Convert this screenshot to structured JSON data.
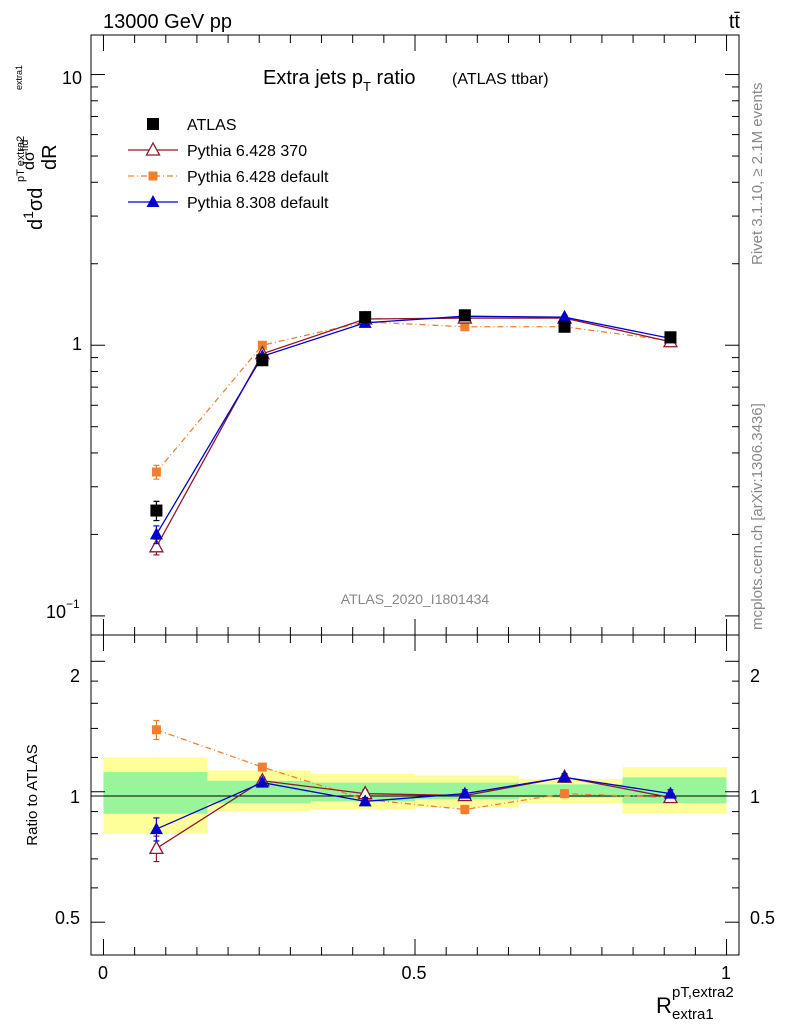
{
  "header": {
    "left": "13000 GeV pp",
    "right": "tt̄"
  },
  "side_texts": {
    "rivet": "Rivet 3.1.10, ≥ 2.1M events",
    "mcplots": "mcplots.cern.ch [arXiv:1306.3436]"
  },
  "watermark": "ATLAS_2020_I1801434",
  "main_title": {
    "text": "Extra jets p",
    "sub": "T",
    "text2": " ratio",
    "small": "(ATLAS ttbar)"
  },
  "ylabel_main": "d¹⁄σ d dσfid / dR pT extra2 extra1",
  "ylabel_ratio": "Ratio to ATLAS",
  "xlabel": {
    "main": "R",
    "sup": "pT,extra2",
    "sub": "extra1"
  },
  "main_ticks": {
    "labels": [
      "10",
      "1",
      "10"
    ],
    "exp": "−1"
  },
  "ratio_ticks": [
    "2",
    "1",
    "0.5"
  ],
  "x_ticks": [
    "0",
    "0.5",
    "1"
  ],
  "legend": [
    {
      "label": "ATLAS",
      "color": "#000000"
    },
    {
      "label": "Pythia 6.428 370",
      "color": "#8b1a2b"
    },
    {
      "label": "Pythia 6.428 default",
      "color": "#f08030"
    },
    {
      "label": "Pythia 8.308 default",
      "color": "#0000cc"
    }
  ],
  "chart_data": {
    "type": "line",
    "x_edges": [
      0,
      0.167,
      0.333,
      0.5,
      0.667,
      0.833,
      1.0
    ],
    "x": [
      0.085,
      0.255,
      0.42,
      0.58,
      0.74,
      0.91
    ],
    "xlim": [
      -0.02,
      1.02
    ],
    "main_ylim": [
      0.085,
      14
    ],
    "main_log": true,
    "ratio_ylim": [
      0.42,
      2.3
    ],
    "ratio_log": true,
    "series": [
      {
        "name": "ATLAS",
        "values": [
          0.245,
          0.88,
          1.27,
          1.29,
          1.17,
          1.07
        ],
        "err": [
          0.02,
          0.03,
          0.03,
          0.03,
          0.03,
          0.03
        ],
        "ratio": [
          1,
          1,
          1,
          1,
          1,
          1
        ],
        "ratio_err": [
          0,
          0,
          0,
          0,
          0,
          0
        ]
      },
      {
        "name": "Pythia 6.428 370",
        "values": [
          0.18,
          0.93,
          1.25,
          1.26,
          1.26,
          1.03
        ],
        "err": [
          0.012,
          0.02,
          0.02,
          0.02,
          0.02,
          0.02
        ],
        "ratio": [
          0.74,
          1.06,
          0.99,
          0.98,
          1.08,
          0.97
        ],
        "ratio_err": [
          0.05,
          0.02,
          0.02,
          0.02,
          0.02,
          0.02
        ]
      },
      {
        "name": "Pythia 6.428 default",
        "values": [
          0.34,
          1.0,
          1.22,
          1.17,
          1.17,
          1.04
        ],
        "err": [
          0.02,
          0.02,
          0.02,
          0.02,
          0.02,
          0.02
        ],
        "ratio": [
          1.39,
          1.14,
          0.96,
          0.91,
          0.99,
          0.97
        ],
        "ratio_err": [
          0.07,
          0.02,
          0.02,
          0.02,
          0.02,
          0.02
        ]
      },
      {
        "name": "Pythia 8.308 default",
        "values": [
          0.2,
          0.91,
          1.21,
          1.28,
          1.27,
          1.06
        ],
        "err": [
          0.015,
          0.02,
          0.02,
          0.02,
          0.02,
          0.02
        ],
        "ratio": [
          0.82,
          1.05,
          0.95,
          0.99,
          1.08,
          0.99
        ],
        "ratio_err": [
          0.05,
          0.02,
          0.02,
          0.02,
          0.02,
          0.02
        ]
      }
    ],
    "bands": {
      "green_lo": [
        0.89,
        0.94,
        0.95,
        0.96,
        0.97,
        0.94
      ],
      "green_hi": [
        1.11,
        1.06,
        1.05,
        1.05,
        1.04,
        1.08
      ],
      "yellow_lo": [
        0.8,
        0.9,
        0.91,
        0.92,
        0.94,
        0.89
      ],
      "yellow_hi": [
        1.2,
        1.12,
        1.1,
        1.09,
        1.07,
        1.14
      ]
    }
  }
}
